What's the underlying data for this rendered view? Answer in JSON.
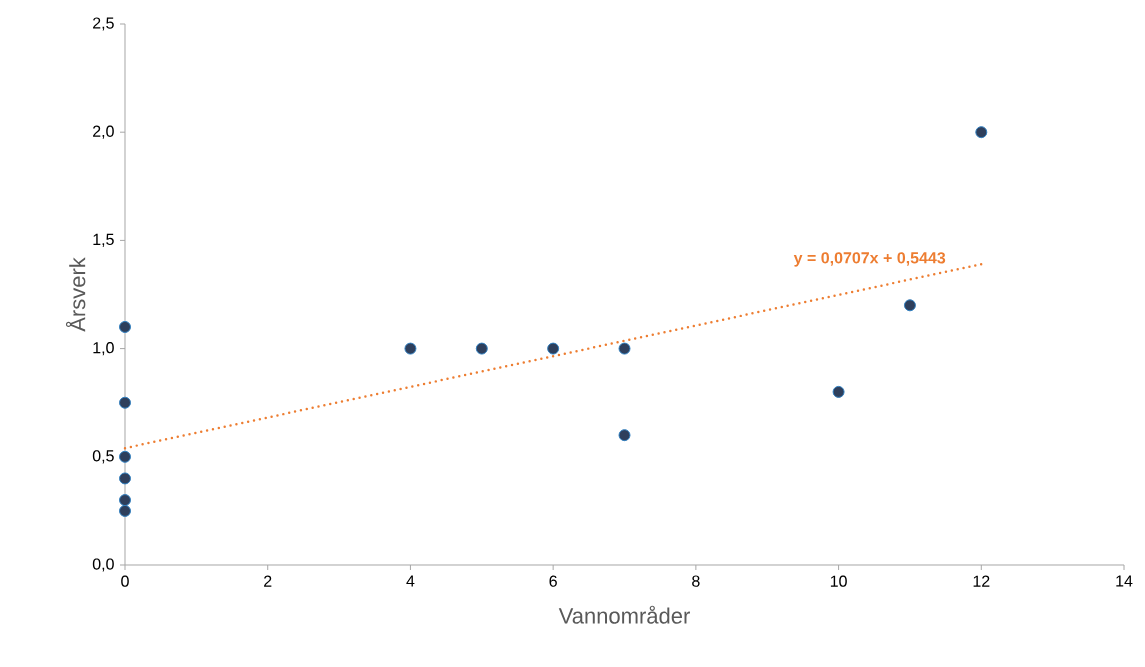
{
  "chart_data": {
    "type": "scatter",
    "xlabel": "Vannområder",
    "ylabel": "Årsverk",
    "xlim": [
      0,
      14
    ],
    "ylim": [
      0,
      2.5
    ],
    "xticks": [
      0,
      2,
      4,
      6,
      8,
      10,
      12,
      14
    ],
    "yticks": [
      {
        "value": 0,
        "label": "0,0"
      },
      {
        "value": 0.5,
        "label": "0,5"
      },
      {
        "value": 1,
        "label": "1,0"
      },
      {
        "value": 1.5,
        "label": "1,5"
      },
      {
        "value": 2,
        "label": "2,0"
      },
      {
        "value": 2.5,
        "label": "2,5"
      }
    ],
    "grid": false,
    "marker": "circle",
    "series": [
      {
        "color": "#2e3f5c",
        "x": [
          0,
          0,
          0,
          0,
          0,
          0,
          4,
          5,
          6,
          7,
          7,
          10,
          11,
          12
        ],
        "values": [
          1.1,
          0.75,
          0.5,
          0.4,
          0.3,
          0.25,
          1.0,
          1.0,
          1.0,
          1.0,
          0.6,
          0.8,
          1.2,
          2.0
        ]
      },
      {
        "type": "line",
        "line_style": "dotted",
        "marker": "none",
        "color": "#ed7d31",
        "x": [
          0,
          12
        ],
        "values": [
          0.54,
          1.39
        ]
      }
    ],
    "annotations": [
      "y = 0,0707x  + 0,5443"
    ]
  }
}
